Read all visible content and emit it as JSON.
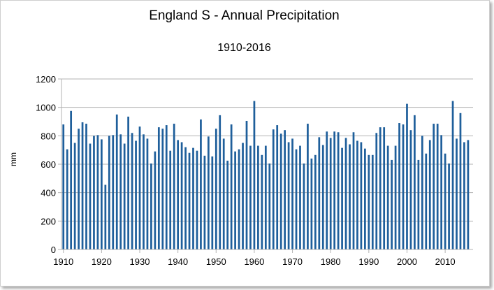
{
  "chart_data": {
    "type": "bar",
    "title": "England S - Annual Precipitation",
    "subtitle": "1910-2016",
    "ylabel": "mm",
    "xlabel": "",
    "ylim": [
      0,
      1200
    ],
    "yticks": [
      0,
      200,
      400,
      600,
      800,
      1000,
      1200
    ],
    "xticks": [
      1910,
      1920,
      1930,
      1940,
      1950,
      1960,
      1970,
      1980,
      1990,
      2000,
      2010
    ],
    "grid": "horizontal",
    "bar_color": "#1f5f9b",
    "x": [
      1910,
      1911,
      1912,
      1913,
      1914,
      1915,
      1916,
      1917,
      1918,
      1919,
      1920,
      1921,
      1922,
      1923,
      1924,
      1925,
      1926,
      1927,
      1928,
      1929,
      1930,
      1931,
      1932,
      1933,
      1934,
      1935,
      1936,
      1937,
      1938,
      1939,
      1940,
      1941,
      1942,
      1943,
      1944,
      1945,
      1946,
      1947,
      1948,
      1949,
      1950,
      1951,
      1952,
      1953,
      1954,
      1955,
      1956,
      1957,
      1958,
      1959,
      1960,
      1961,
      1962,
      1963,
      1964,
      1965,
      1966,
      1967,
      1968,
      1969,
      1970,
      1971,
      1972,
      1973,
      1974,
      1975,
      1976,
      1977,
      1978,
      1979,
      1980,
      1981,
      1982,
      1983,
      1984,
      1985,
      1986,
      1987,
      1988,
      1989,
      1990,
      1991,
      1992,
      1993,
      1994,
      1995,
      1996,
      1997,
      1998,
      1999,
      2000,
      2001,
      2002,
      2003,
      2004,
      2005,
      2006,
      2007,
      2008,
      2009,
      2010,
      2011,
      2012,
      2013,
      2014,
      2015,
      2016
    ],
    "values": [
      880,
      705,
      975,
      750,
      850,
      895,
      885,
      745,
      800,
      805,
      775,
      455,
      800,
      805,
      950,
      810,
      745,
      935,
      820,
      765,
      865,
      810,
      780,
      605,
      690,
      860,
      850,
      875,
      695,
      885,
      770,
      755,
      720,
      680,
      715,
      695,
      915,
      660,
      795,
      655,
      850,
      945,
      780,
      625,
      880,
      690,
      705,
      750,
      905,
      730,
      1045,
      730,
      665,
      730,
      605,
      845,
      875,
      815,
      840,
      755,
      780,
      705,
      730,
      605,
      885,
      640,
      665,
      790,
      735,
      830,
      785,
      830,
      825,
      715,
      785,
      740,
      825,
      765,
      755,
      710,
      665,
      665,
      820,
      860,
      860,
      730,
      630,
      730,
      890,
      880,
      1025,
      840,
      945,
      630,
      800,
      675,
      770,
      885,
      885,
      805,
      675,
      605,
      1045,
      780,
      960,
      755,
      770
    ]
  }
}
